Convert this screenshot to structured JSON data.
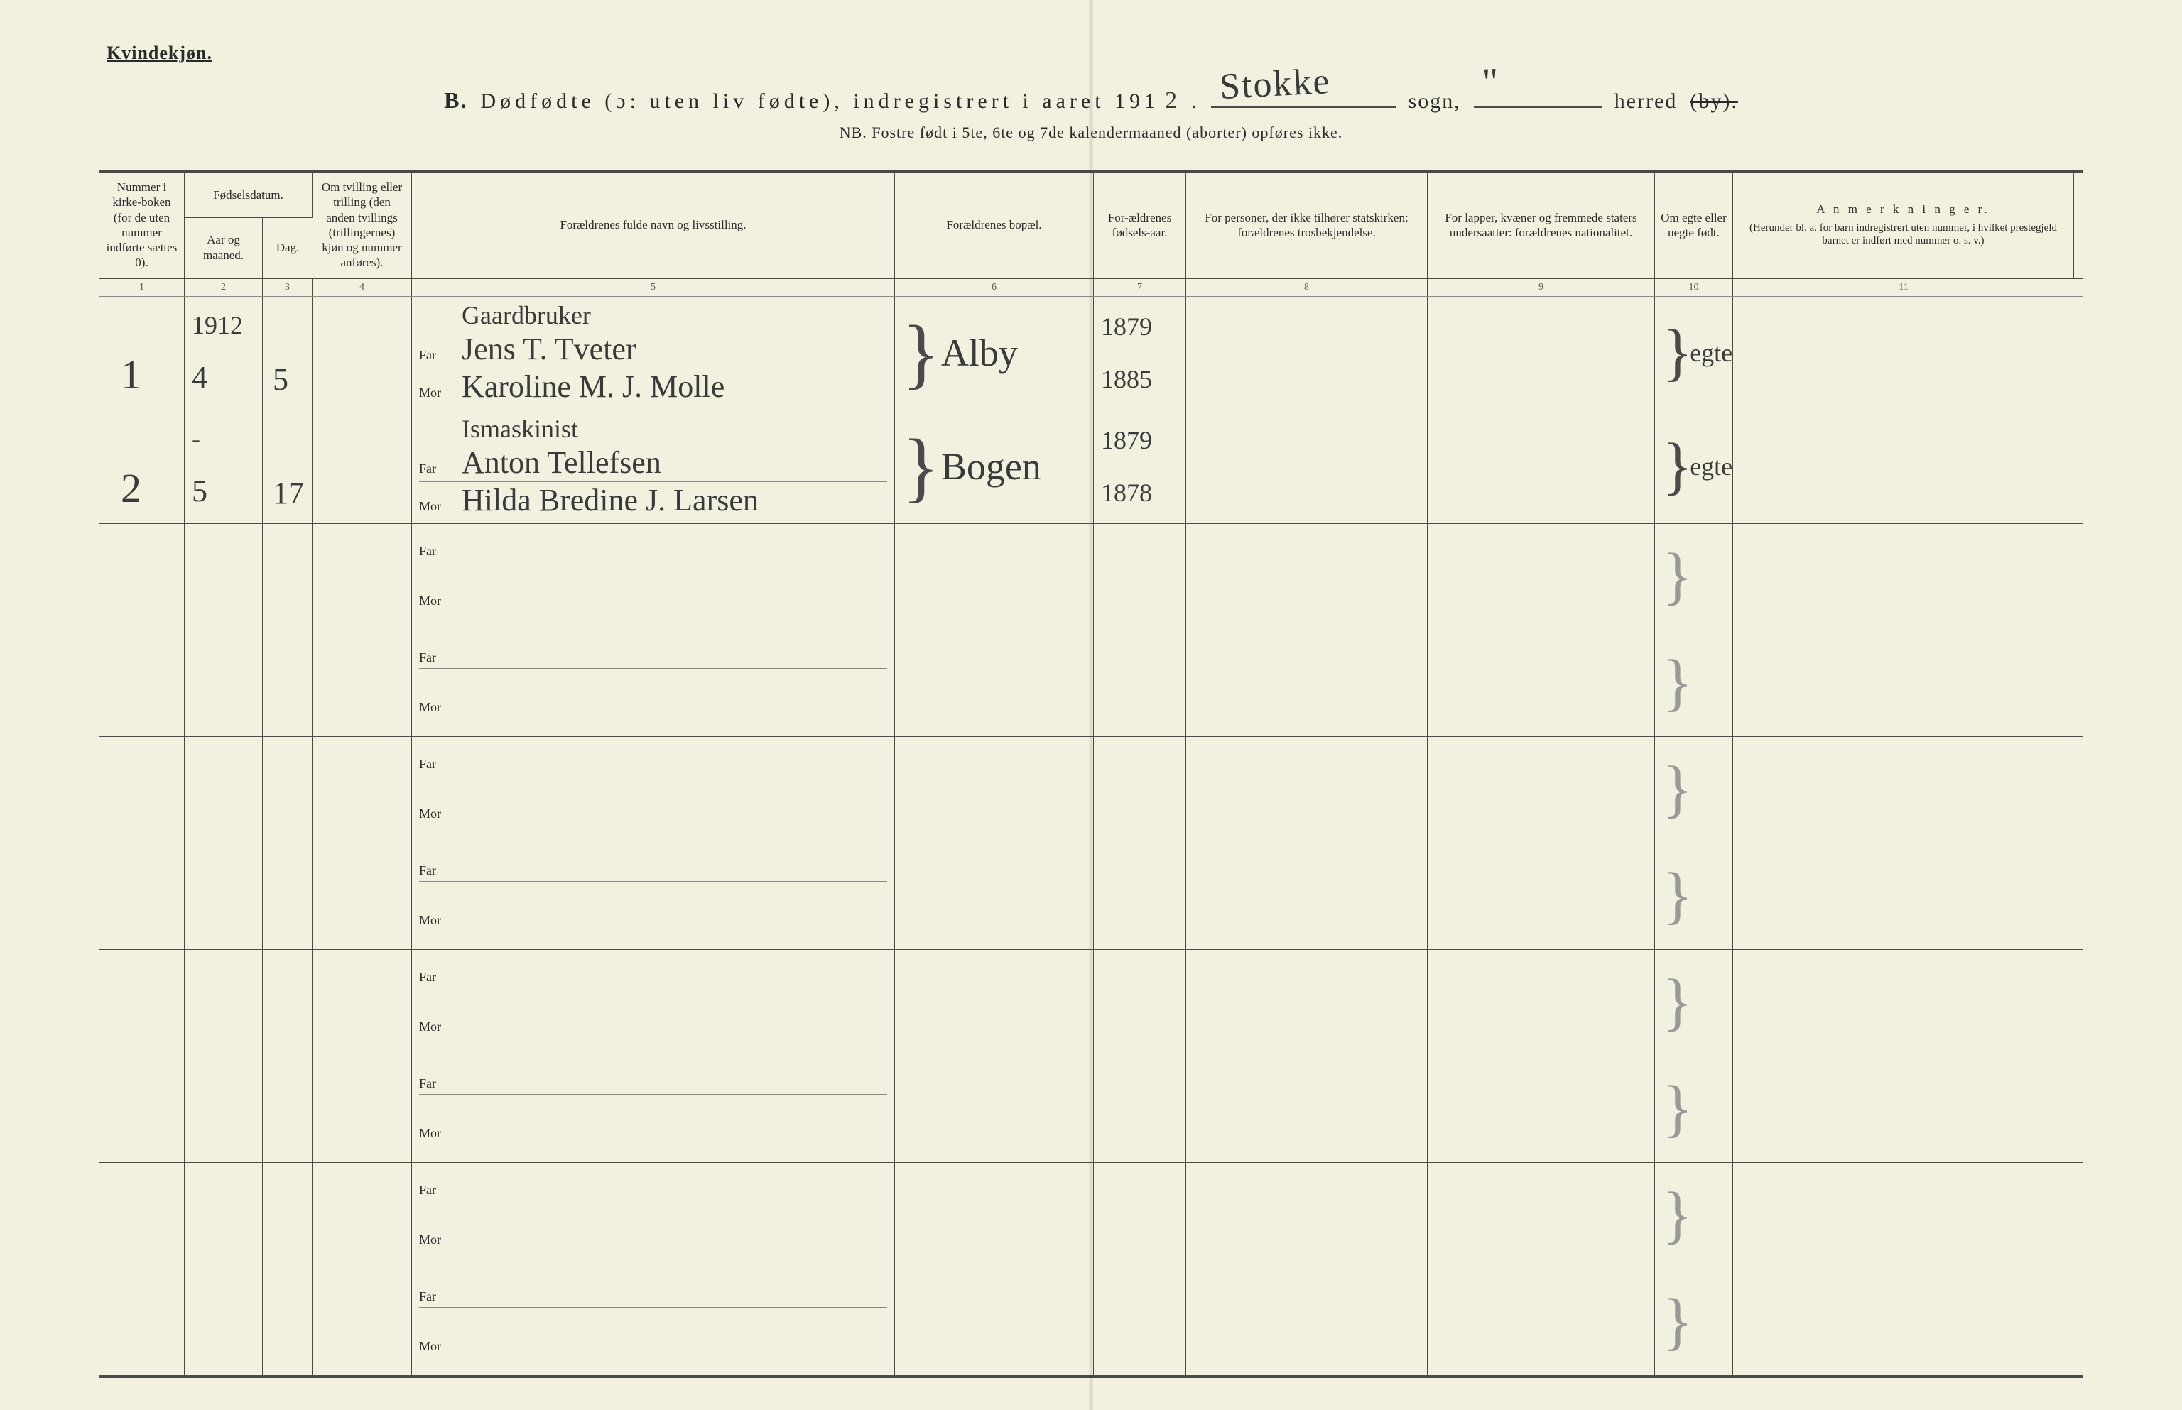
{
  "header": {
    "corner_label": "Kvindekjøn.",
    "section_letter": "B.",
    "title_main": "Dødfødte (ɔ: uten liv fødte), indregistrert i aaret 191",
    "year_suffix_handwritten": "2",
    "sogn_label": "sogn,",
    "sogn_value": "Stokke",
    "herred_label": "herred",
    "herred_strike": "(by).",
    "herred_value": "\"",
    "subtitle": "NB.  Fostre født i 5te, 6te og 7de kalendermaaned (aborter) opføres ikke."
  },
  "columns": {
    "c1": "Nummer i kirke-boken (for de uten nummer indførte sættes 0).",
    "c2_top": "Fødselsdatum.",
    "c2a": "Aar og maaned.",
    "c2b": "Dag.",
    "c4": "Om tvilling eller trilling (den anden tvillings (trillingernes) kjøn og nummer anføres).",
    "c5": "Forældrenes fulde navn og livsstilling.",
    "c6": "Forældrenes bopæl.",
    "c7": "For-ældrenes fødsels-aar.",
    "c8": "For personer, der ikke tilhører statskirken: forældrenes trosbekjendelse.",
    "c9": "For lapper, kvæner og fremmede staters undersaatter: forældrenes nationalitet.",
    "c10": "Om egte eller uegte født.",
    "c11_top": "A n m e r k n i n g e r.",
    "c11_sub": "(Herunder bl. a. for barn indregistrert uten nummer, i hvilket prestegjeld barnet er indført med nummer o. s. v.)",
    "nums": [
      "1",
      "2",
      "3",
      "4",
      "5",
      "6",
      "7",
      "8",
      "9",
      "10",
      "11"
    ],
    "far_label": "Far",
    "mor_label": "Mor"
  },
  "rows": [
    {
      "num": "1",
      "year_month_top": "1912",
      "year_month": "4",
      "day": "5",
      "twin": "",
      "occupation": "Gaardbruker",
      "far": "Jens T. Tveter",
      "mor": "Karoline M. J. Molle",
      "bopael": "Alby",
      "far_year": "1879",
      "mor_year": "1885",
      "egte": "egte"
    },
    {
      "num": "2",
      "year_month_top": "-",
      "year_month": "5",
      "day": "17",
      "twin": "",
      "occupation": "Ismaskinist",
      "far": "Anton Tellefsen",
      "mor": "Hilda Bredine J. Larsen",
      "bopael": "Bogen",
      "far_year": "1879",
      "mor_year": "1878",
      "egte": "egte"
    },
    {
      "empty": true
    },
    {
      "empty": true
    },
    {
      "empty": true
    },
    {
      "empty": true
    },
    {
      "empty": true
    },
    {
      "empty": true
    },
    {
      "empty": true
    },
    {
      "empty": true
    }
  ],
  "style": {
    "paper_color": "#f2f1df",
    "ink_color": "#2a2a2a",
    "rule_color": "#4a4a4a",
    "script_color": "#3a3a3a"
  }
}
